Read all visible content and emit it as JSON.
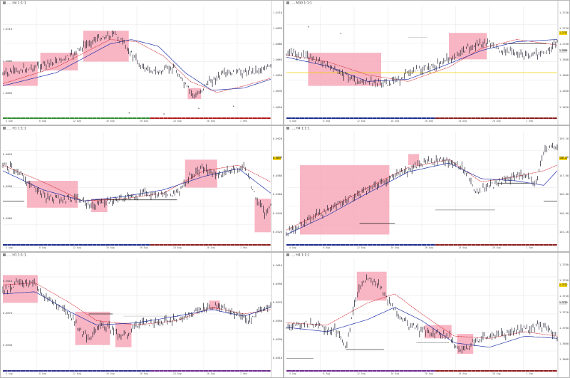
{
  "colors": {
    "zone": "#f7a8b8",
    "ma_red": "#d0202a",
    "ma_blue": "#2233aa",
    "price": "#1a1a2a",
    "grid": "#e4e4e4",
    "highlight": "#f0d000"
  },
  "panels": [
    {
      "id": "p1",
      "title": "…, H4 1:1:1",
      "bar_colors": [
        "#2e8b2e",
        "#b01818"
      ],
      "ylabels": [
        "1.0710",
        "1.0695",
        "1.0680",
        "1.0665",
        "1.0650",
        "1.0635",
        "1.0620"
      ],
      "yaxis_left": [
        "1.0710",
        "1.0680",
        "1.0650"
      ],
      "xticks": [
        "4 Aug",
        "8 Aug",
        "12 Aug",
        "16 Aug",
        "20 Aug",
        "24 Aug",
        "28 Aug",
        "1 Sep"
      ]
    },
    {
      "id": "p2",
      "title": "…, M30 1:1:1",
      "bar_colors": [
        "#1b2a8c",
        "#8b1b1b"
      ],
      "ylabels": [
        "1.2740",
        "1.2720",
        "1.2700",
        "1.2680",
        "1.2660",
        "1.2640",
        "1.2620"
      ],
      "yaxis_left": [],
      "pricebox_labels": [
        "1.2711",
        "1.2694"
      ],
      "xticks": [
        "4 Aug",
        "8 Aug",
        "12 Aug",
        "16 Aug",
        "20 Aug",
        "24 Aug",
        "28 Aug",
        "1 Sep"
      ]
    },
    {
      "id": "p3",
      "title": "…, H1 1:1:1",
      "bar_colors": [
        "#1b2a8c",
        "#8b1b1b"
      ],
      "ylabels": [
        "0.6620",
        "0.6600",
        "0.6580",
        "0.6560",
        "0.6540",
        "0.6520"
      ],
      "yaxis_left": [
        "0.6620",
        "0.6590",
        "0.6560"
      ],
      "pricebox_labels": [
        "0.6603"
      ],
      "xticks": [
        "4 Aug",
        "8 Aug",
        "12 Aug",
        "16 Aug",
        "20 Aug",
        "24 Aug",
        "28 Aug",
        "1 Sep"
      ]
    },
    {
      "id": "p4",
      "title": "…, H4 1:1:1",
      "bar_colors": [
        "#1b2a8c",
        "#8b1b1b"
      ],
      "ylabels": [
        "149.20",
        "148.40",
        "147.60",
        "146.80",
        "146.00",
        "145.20"
      ],
      "yaxis_left": [],
      "pricebox_labels": [
        "148.22"
      ],
      "xticks": [
        "4 Aug",
        "8 Aug",
        "12 Aug",
        "16 Aug",
        "20 Aug",
        "24 Aug",
        "28 Aug",
        "1 Sep"
      ]
    },
    {
      "id": "p5",
      "title": "…, H1 1:1:1",
      "bar_colors": [
        "#2e2e8c",
        "#6a2a8c"
      ],
      "ylabels": [
        "0.9010",
        "0.8990",
        "0.8970",
        "0.8950",
        "0.8930",
        "0.8910"
      ],
      "yaxis_left": [
        "0.9010",
        "0.8970",
        "0.8930"
      ],
      "xticks": [
        "4 Aug",
        "8 Aug",
        "12 Aug",
        "16 Aug",
        "20 Aug",
        "24 Aug",
        "28 Aug",
        "1 Sep"
      ]
    },
    {
      "id": "p6",
      "title": "…, H4 1:1:1",
      "bar_colors": [
        "#6a2a8c",
        "#8b1b1b"
      ],
      "ylabels": [
        "1.3780",
        "1.3760",
        "1.3740",
        "1.3720",
        "1.3700",
        "1.3680",
        "1.3660"
      ],
      "yaxis_left": [],
      "pricebox_labels": [
        "1.3722",
        "1.3710"
      ],
      "xticks": [
        "4 Aug",
        "8 Aug",
        "12 Aug",
        "16 Aug",
        "20 Aug",
        "24 Aug",
        "28 Aug",
        "1 Sep"
      ]
    }
  ]
}
